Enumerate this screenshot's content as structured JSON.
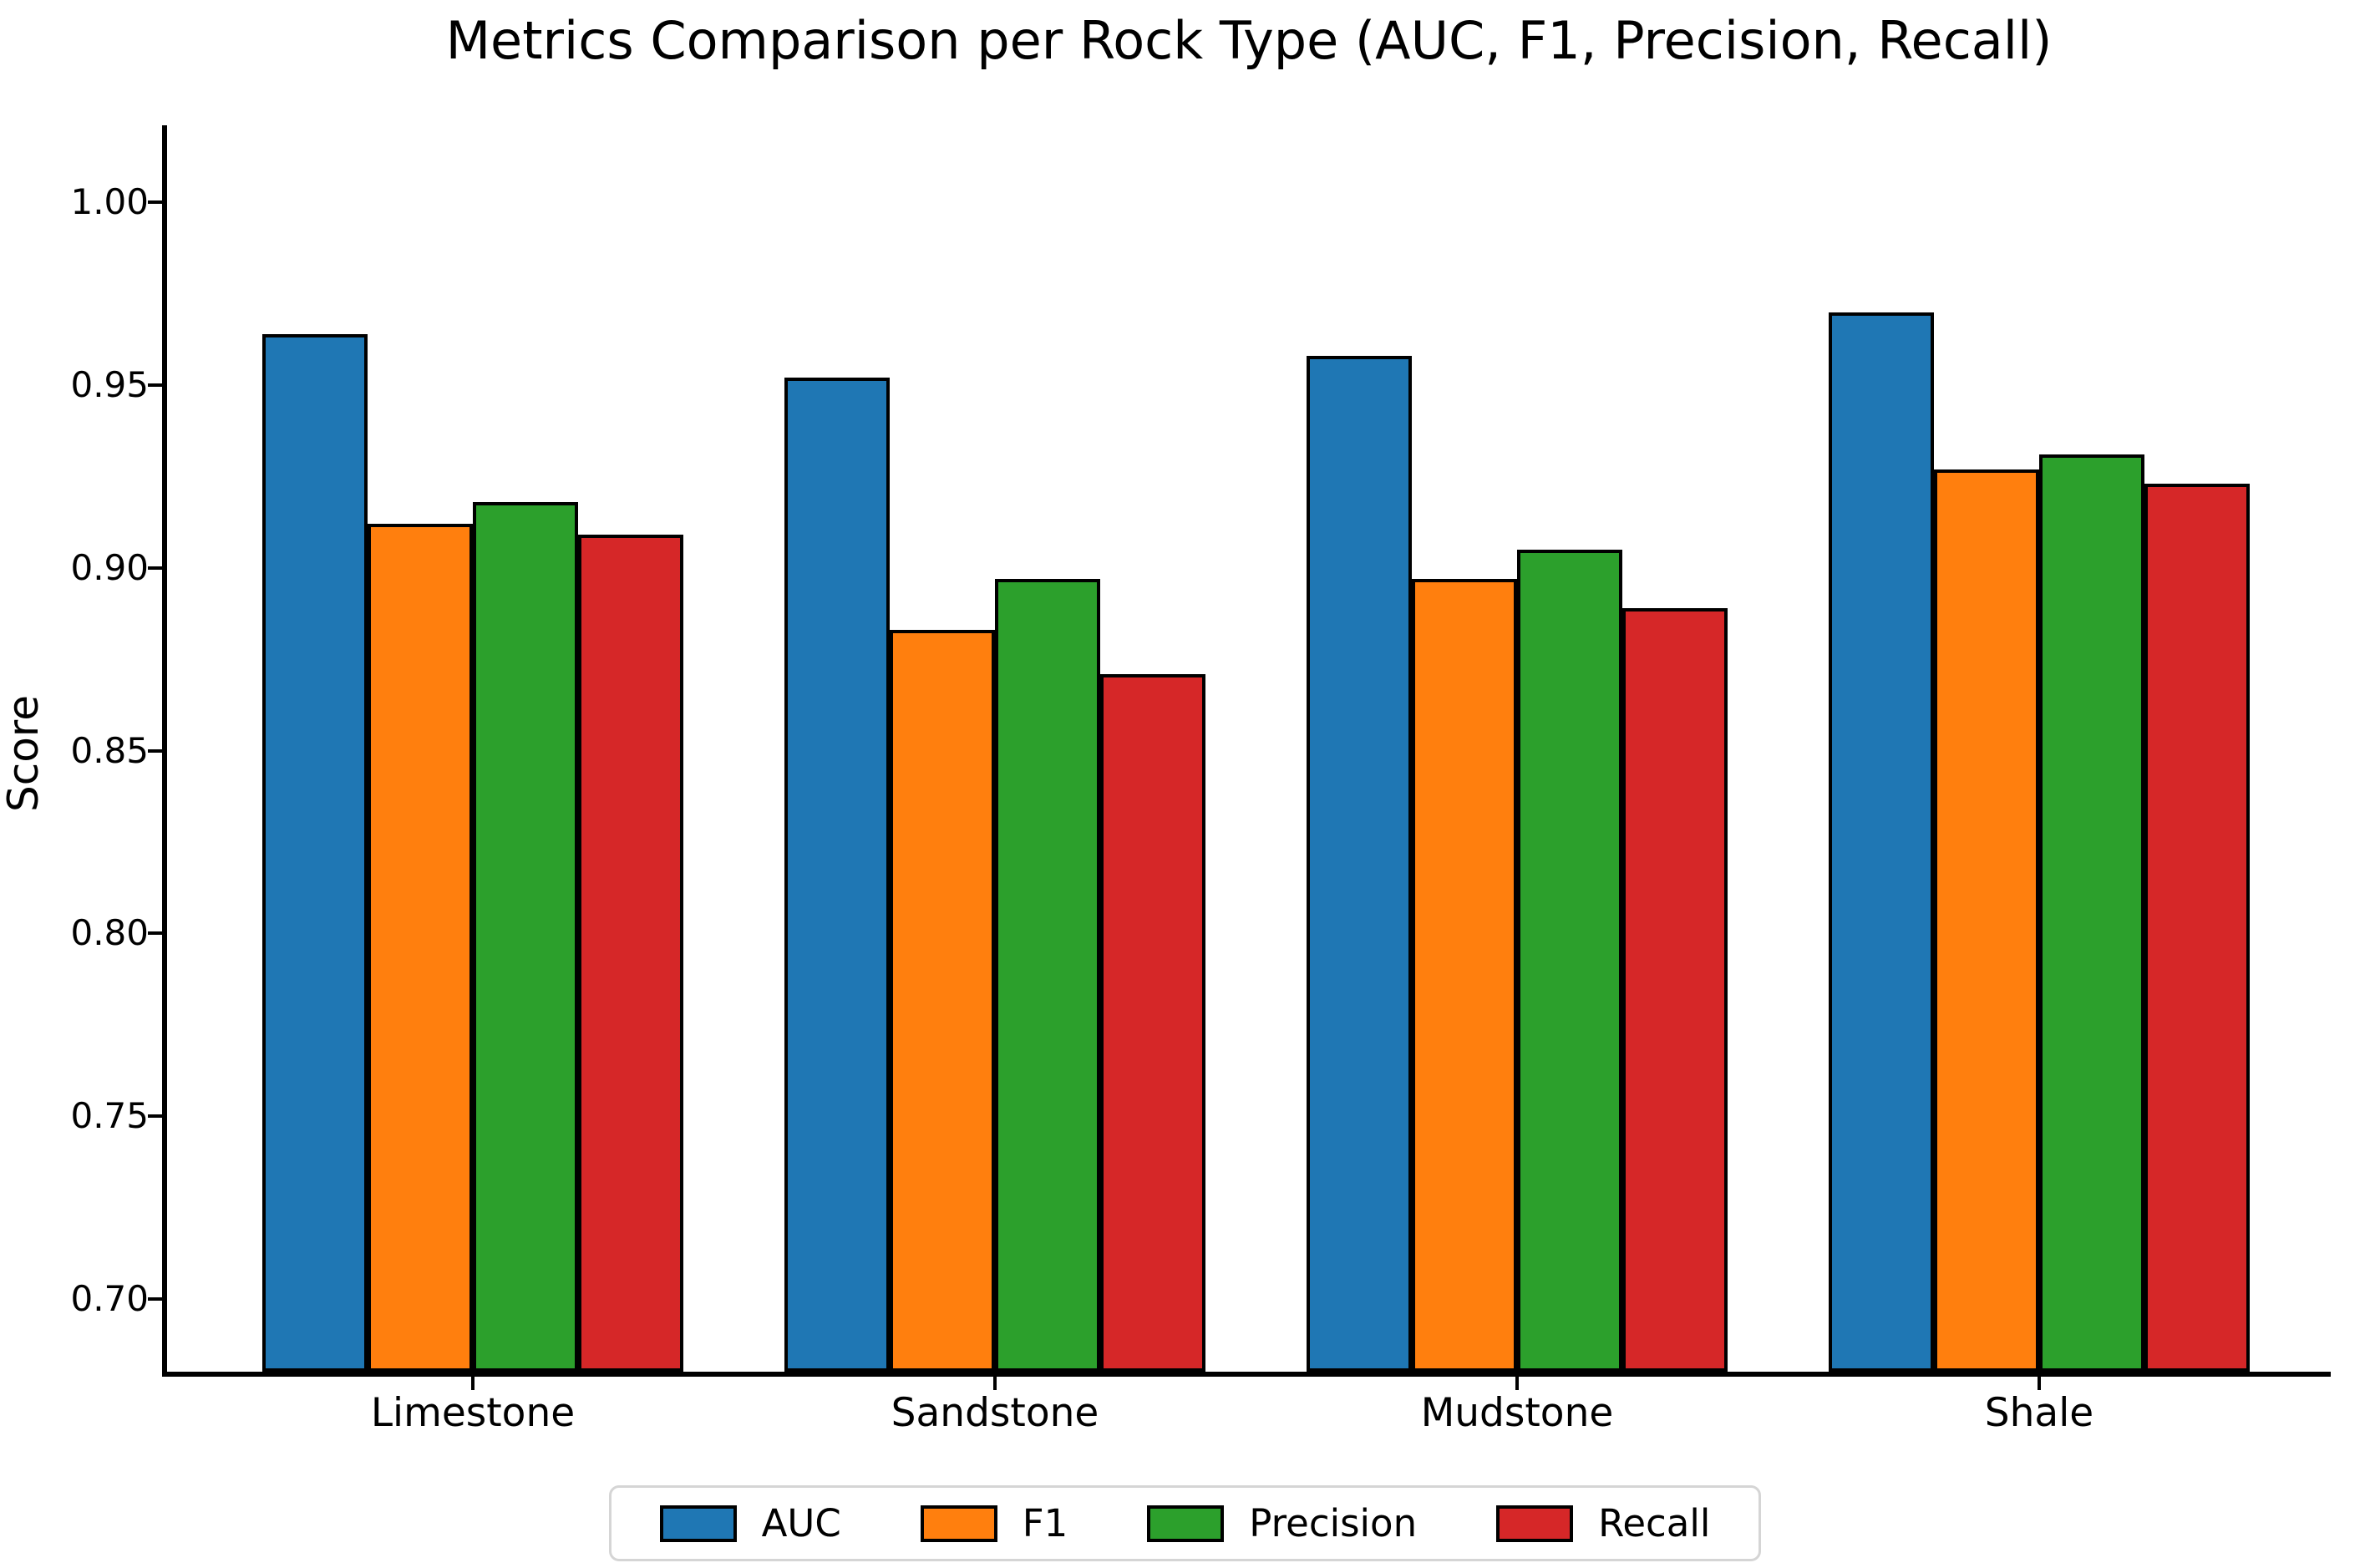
{
  "page": {
    "background": "#ffffff"
  },
  "chart_data": {
    "type": "bar",
    "title": "Metrics Comparison per Rock Type (AUC, F1, Precision, Recall)",
    "xlabel": "",
    "ylabel": "Score",
    "categories": [
      "Limestone",
      "Sandstone",
      "Mudstone",
      "Shale"
    ],
    "series": [
      {
        "name": "AUC",
        "color": "#1f77b4",
        "values": [
          0.964,
          0.952,
          0.958,
          0.97
        ]
      },
      {
        "name": "F1",
        "color": "#ff7f0e",
        "values": [
          0.912,
          0.883,
          0.897,
          0.927
        ]
      },
      {
        "name": "Precision",
        "color": "#2ca02c",
        "values": [
          0.918,
          0.897,
          0.905,
          0.931
        ]
      },
      {
        "name": "Recall",
        "color": "#d62728",
        "values": [
          0.909,
          0.871,
          0.889,
          0.923
        ]
      }
    ],
    "ylim": [
      0.68,
      1.02
    ],
    "yticks": [
      "1.00",
      "0.95",
      "0.90",
      "0.85",
      "0.80",
      "0.75",
      "0.70"
    ],
    "bar_edge_color": "#000000",
    "grid": false,
    "legend_position": "bottom"
  }
}
